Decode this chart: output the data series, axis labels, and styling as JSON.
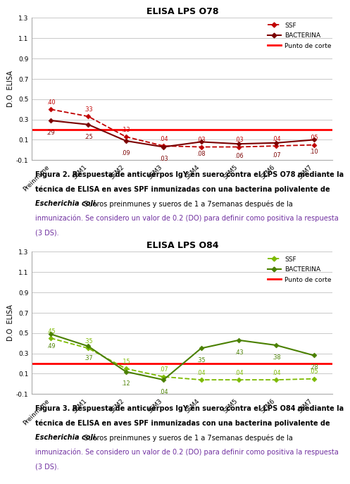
{
  "chart1": {
    "title": "ELISA LPS O78",
    "x_labels": [
      "Preinmune",
      "SEM1",
      "SEM2",
      "SEM3",
      "SEM4",
      "SEM5",
      "SEM6",
      "SEM7"
    ],
    "ssf_values": [
      0.4,
      0.33,
      0.13,
      0.04,
      0.03,
      0.03,
      0.04,
      0.05
    ],
    "bacterina_values": [
      0.29,
      0.25,
      0.09,
      0.03,
      0.08,
      0.06,
      0.07,
      0.1
    ],
    "punto_de_corte": 0.2,
    "ssf_color": "#c00000",
    "bacterina_color": "#7b0000",
    "corte_color": "#ff0000",
    "ylim": [
      -0.1,
      1.3
    ],
    "yticks": [
      -0.1,
      0.1,
      0.3,
      0.5,
      0.7,
      0.9,
      1.1,
      1.3
    ],
    "ylabel": "D.O  ELISA",
    "fig_num": "2",
    "lps_label": "LPS O78"
  },
  "chart2": {
    "title": "ELISA LPS O84",
    "x_labels": [
      "Preinmune",
      "SEM1",
      "SEM2",
      "SEM3",
      "SEM4",
      "SEM5",
      "SEM6",
      "SEM7"
    ],
    "ssf_values": [
      0.45,
      0.35,
      0.15,
      0.07,
      0.04,
      0.04,
      0.04,
      0.05
    ],
    "bacterina_values": [
      0.49,
      0.37,
      0.12,
      0.04,
      0.35,
      0.43,
      0.38,
      0.28
    ],
    "punto_de_corte": 0.2,
    "ssf_color": "#7cba00",
    "bacterina_color": "#4a8000",
    "corte_color": "#ff0000",
    "ylim": [
      -0.1,
      1.3
    ],
    "yticks": [
      -0.1,
      0.1,
      0.3,
      0.5,
      0.7,
      0.9,
      1.1,
      1.3
    ],
    "ylabel": "D.O  ELISA",
    "fig_num": "3",
    "lps_label": "LPS O84"
  },
  "background": "#ffffff",
  "grid_color": "#c0c0c0",
  "purple_color": "#7030a0",
  "caption_line1_template": "Figura X. Respuesta de anticuerpos IgY en suero contra el LPS_TAG mediante la",
  "caption_line2": "técnica de ELISA en aves SPF inmunizadas con una bacterina polivalente de",
  "caption_line3_italic": "Escherichia coli.",
  "caption_line3_rest": " Sueros preinmunes y sueros de 1 a 7semanas después de la",
  "caption_line4_purple": "inmunización. Se considero un valor de 0.2 (DO) para definir como positiva la respuesta",
  "caption_line5_purple": "(3 DS).",
  "caption_fontsize": 7.0,
  "chart_title_fontsize": 9,
  "axis_label_fontsize": 7,
  "tick_fontsize": 6.5,
  "legend_fontsize": 6.5,
  "data_label_fontsize": 5.8
}
